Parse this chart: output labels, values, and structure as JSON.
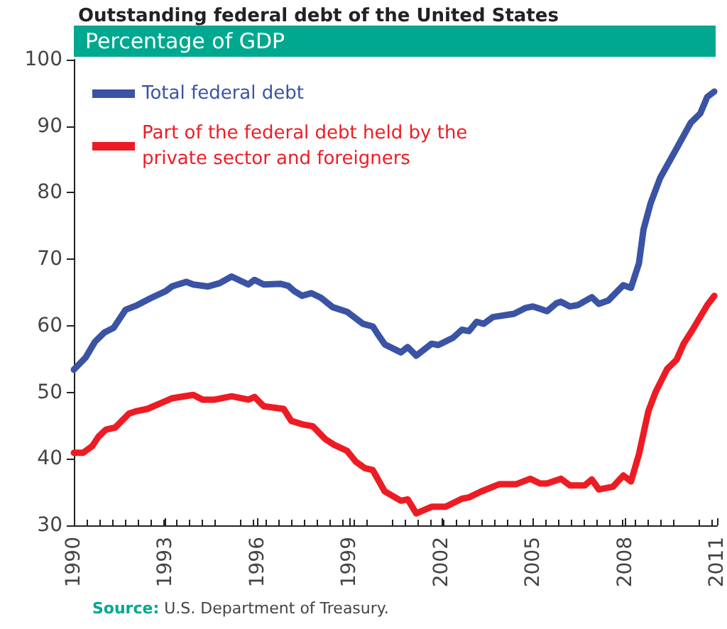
{
  "chart_data": {
    "type": "line",
    "title": "Outstanding federal debt of the United States",
    "subtitle": "Percentage of GDP",
    "xlim": [
      1990,
      2011
    ],
    "xticks": [
      1990,
      1993,
      1996,
      1999,
      2002,
      2005,
      2008,
      2011
    ],
    "ylim": [
      30,
      100
    ],
    "yticks": [
      30,
      40,
      50,
      60,
      70,
      80,
      90,
      100
    ],
    "grid": false,
    "legend": "top left",
    "marker": "none",
    "line_style": "solid",
    "annotations": [
      "Source: U.S. Department of Treasury."
    ],
    "series": [
      {
        "name": "Total federal debt",
        "color": "#3a53a4",
        "x": [
          1990,
          1990.38,
          1990.69,
          1991.0,
          1991.3,
          1991.69,
          1992.07,
          1992.53,
          1993.0,
          1993.2,
          1993.67,
          1993.9,
          1994.37,
          1994.76,
          1995.15,
          1995.7,
          1995.9,
          1996.2,
          1996.76,
          1997.0,
          1997.2,
          1997.45,
          1997.76,
          1998.07,
          1998.45,
          1998.92,
          1999.44,
          1999.76,
          1999.9,
          2000.15,
          2000.68,
          2000.9,
          2001.18,
          2001.68,
          2001.9,
          2002.38,
          2002.67,
          2002.9,
          2003.15,
          2003.38,
          2003.68,
          2004.37,
          2004.76,
          2004.99,
          2005.45,
          2005.76,
          2005.9,
          2006.2,
          2006.45,
          2006.91,
          2007.14,
          2007.45,
          2007.94,
          2008.19,
          2008.45,
          2008.6,
          2008.83,
          2009.14,
          2009.6,
          2010.14,
          2010.45,
          2010.68,
          2010.91
        ],
        "values": [
          53.4,
          55.2,
          57.6,
          59,
          59.7,
          62.4,
          63.1,
          64.2,
          65.2,
          65.9,
          66.6,
          66.2,
          65.9,
          66.4,
          67.4,
          66.2,
          66.9,
          66.2,
          66.3,
          66,
          65.2,
          64.5,
          64.9,
          64.2,
          62.8,
          62.1,
          60.3,
          59.9,
          58.9,
          57.2,
          56.0,
          56.8,
          55.5,
          57.3,
          57.1,
          58.2,
          59.4,
          59.2,
          60.6,
          60.3,
          61.3,
          61.8,
          62.7,
          62.9,
          62.2,
          63.4,
          63.6,
          62.9,
          63.1,
          64.3,
          63.3,
          63.8,
          66.1,
          65.7,
          69.4,
          74.5,
          78.4,
          82.2,
          86,
          90.5,
          91.9,
          94.4,
          95.2
        ]
      },
      {
        "name": "Part of the federal debt held by the private sector and foreigners",
        "color": "#ed1c24",
        "x": [
          1990,
          1990.3,
          1990.6,
          1990.8,
          1991.05,
          1991.35,
          1991.8,
          1992.07,
          1992.4,
          1992.85,
          1993.2,
          1993.9,
          1994.2,
          1994.6,
          1995.15,
          1995.7,
          1995.9,
          1996.2,
          1996.85,
          1997.1,
          1997.45,
          1997.8,
          1998.2,
          1998.5,
          1998.92,
          1999.2,
          1999.5,
          1999.76,
          2000.15,
          2000.68,
          2000.9,
          2001.18,
          2001.68,
          2002.14,
          2002.67,
          2002.9,
          2003.3,
          2003.9,
          2004.45,
          2004.9,
          2005.22,
          2005.45,
          2005.9,
          2006.2,
          2006.68,
          2006.91,
          2007.14,
          2007.6,
          2007.94,
          2008.19,
          2008.45,
          2008.76,
          2008.99,
          2009.37,
          2009.68,
          2009.91,
          2010.2,
          2010.68,
          2010.91
        ],
        "values": [
          40.9,
          40.9,
          41.9,
          43.3,
          44.4,
          44.7,
          46.8,
          47.2,
          47.5,
          48.4,
          49.1,
          49.6,
          48.9,
          48.9,
          49.4,
          48.9,
          49.3,
          47.9,
          47.5,
          45.7,
          45.2,
          44.9,
          43,
          42.1,
          41.2,
          39.6,
          38.6,
          38.3,
          35.1,
          33.7,
          33.9,
          31.8,
          32.8,
          32.8,
          34,
          34.2,
          35.1,
          36.2,
          36.2,
          37,
          36.3,
          36.3,
          37,
          36,
          36,
          36.9,
          35.4,
          35.8,
          37.5,
          36.6,
          40.7,
          47.2,
          50,
          53.5,
          54.9,
          57.3,
          59.4,
          63.1,
          64.5
        ]
      }
    ]
  }
}
